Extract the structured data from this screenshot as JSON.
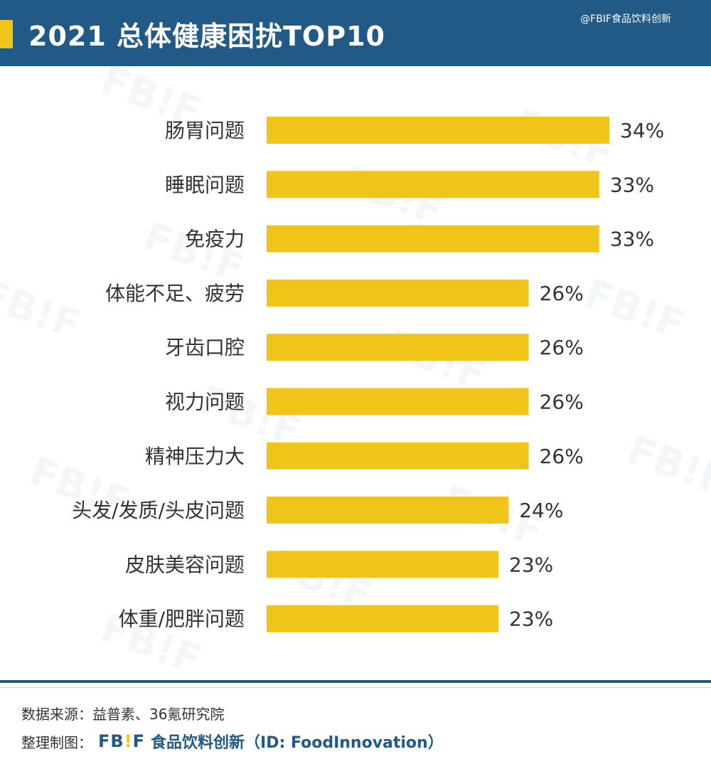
{
  "header": {
    "title": "2021 总体健康困扰TOP10",
    "corner_watermark": "@FBIF食品饮料创新"
  },
  "watermark": {
    "text": "FB!F"
  },
  "chart_data": {
    "type": "bar",
    "orientation": "horizontal",
    "title": "2021 总体健康困扰TOP10",
    "categories": [
      "肠胃问题",
      "睡眠问题",
      "免疫力",
      "体能不足、疲劳",
      "牙齿口腔",
      "视力问题",
      "精神压力大",
      "头发/发质/头皮问题",
      "皮肤美容问题",
      "体重/肥胖问题"
    ],
    "values": [
      34,
      33,
      33,
      26,
      26,
      26,
      26,
      24,
      23,
      23
    ],
    "value_suffix": "%",
    "bar_color": "#f0c419",
    "xlim": [
      0,
      34
    ],
    "grid": false
  },
  "footer": {
    "source": "数据来源：益普素、36氪研究院",
    "credit_label": "整理制图：",
    "logo_main": "FB",
    "logo_bang": "!",
    "logo_end": "F",
    "org": "食品饮料创新（ID: FoodInnovation）"
  },
  "colors": {
    "header_bg": "#215a86",
    "accent": "#f0c419",
    "text": "#333333"
  }
}
